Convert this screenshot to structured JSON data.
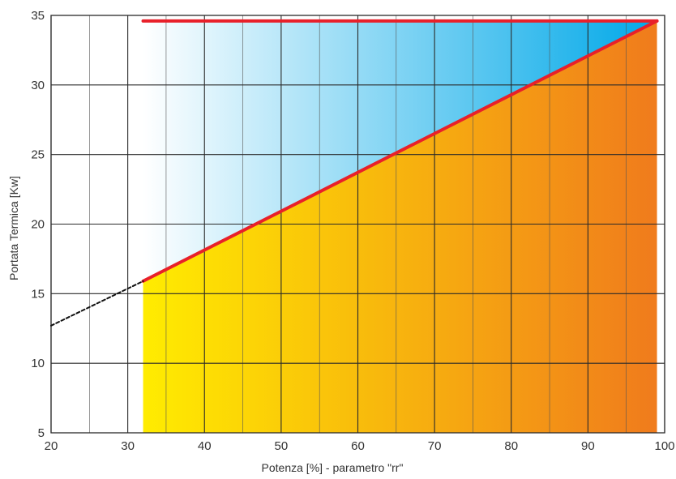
{
  "chart_data": {
    "type": "area",
    "xlabel": "Potenza [%]  - parametro \"rr\"",
    "ylabel": "Portata Termica [Kw]",
    "xlim": [
      20,
      100
    ],
    "ylim": [
      5,
      35
    ],
    "x_ticks": [
      "20",
      "30",
      "40",
      "50",
      "60",
      "70",
      "80",
      "90",
      "100"
    ],
    "y_ticks": [
      "5",
      "10",
      "15",
      "20",
      "25",
      "30",
      "35"
    ],
    "grid": true,
    "grid_x_step": 5,
    "grid_y_step": 5,
    "series": [
      {
        "role": "max-line",
        "color": "#e8202a",
        "points": [
          [
            32,
            34.6
          ],
          [
            99,
            34.6
          ]
        ]
      },
      {
        "role": "modulation-line",
        "color": "#e8202a",
        "points": [
          [
            32,
            15.9
          ],
          [
            99,
            34.6
          ]
        ]
      },
      {
        "role": "extrapolation",
        "style": "dashed",
        "color": "#111111",
        "points": [
          [
            20,
            12.7
          ],
          [
            32,
            15.9
          ]
        ]
      }
    ],
    "regions": [
      {
        "role": "upper",
        "gradient": [
          "#ffffff",
          "#00a8e8"
        ],
        "x_range": [
          32,
          99
        ]
      },
      {
        "role": "lower",
        "gradient": [
          "#ffec00",
          "#f07b1c"
        ],
        "x_range": [
          32,
          99
        ]
      }
    ]
  }
}
